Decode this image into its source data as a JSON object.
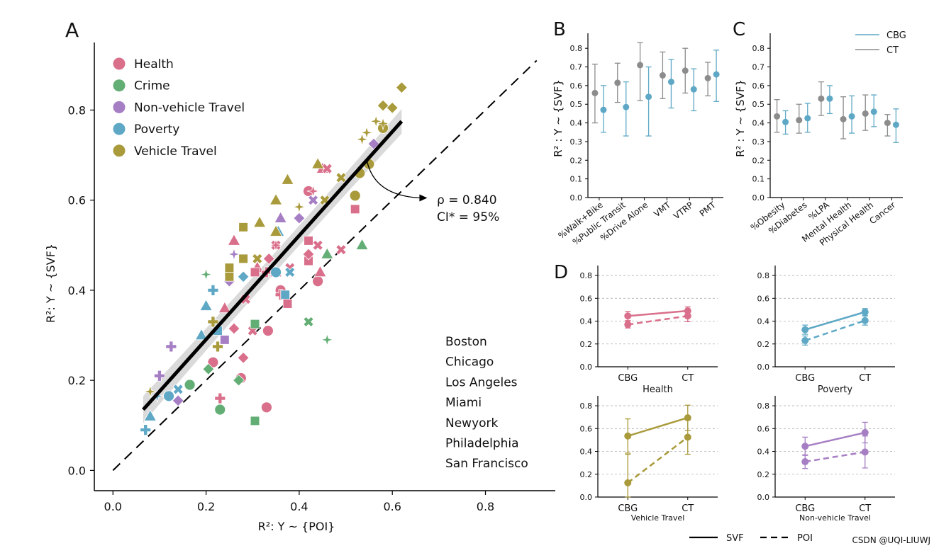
{
  "colors": {
    "Health": "#d96f8a",
    "Crime": "#63ae74",
    "Non-vehicle Travel": "#a67ec4",
    "Poverty": "#5ea8c6",
    "Vehicle Travel": "#a99a3b",
    "CBG": "#5ea8c6",
    "CT": "#8c8c8c",
    "fit": "#000000",
    "band": "#d3d3d3"
  },
  "watermark": "CSDN @UQI-LIUWJ",
  "chart_data": [
    {
      "panel": "A",
      "type": "scatter",
      "xlabel": "R²: Y ~ {POI}",
      "ylabel": "R²: Y ~ {SVF}",
      "xlim": [
        -0.04,
        0.95
      ],
      "ylim": [
        -0.045,
        0.95
      ],
      "xticks": [
        "0.0",
        "0.2",
        "0.4",
        "0.6",
        "0.8"
      ],
      "yticks": [
        "0.0",
        "0.2",
        "0.4",
        "0.6",
        "0.8"
      ],
      "legend_colors": [
        "Health",
        "Crime",
        "Non-vehicle Travel",
        "Poverty",
        "Vehicle Travel"
      ],
      "legend_cities": [
        {
          "label": "Boston",
          "marker": "circle"
        },
        {
          "label": "Chicago",
          "marker": "x"
        },
        {
          "label": "Los Angeles",
          "marker": "square"
        },
        {
          "label": "Miami",
          "marker": "plus"
        },
        {
          "label": "Newyork",
          "marker": "diamond"
        },
        {
          "label": "Philadelphia",
          "marker": "star"
        },
        {
          "label": "San Francisco",
          "marker": "triangle"
        }
      ],
      "annotation": {
        "rho": "ρ = 0.840",
        "ci": "CI* = 95%"
      },
      "fit_line": {
        "x": [
          0.065,
          0.62
        ],
        "y": [
          0.135,
          0.775
        ]
      },
      "identity_line": {
        "x": [
          0.0,
          0.91
        ],
        "y": [
          0.0,
          0.91
        ]
      },
      "points": [
        {
          "x": 0.333,
          "y": 0.31,
          "cat": "Health",
          "m": "circle"
        },
        {
          "x": 0.33,
          "y": 0.14,
          "cat": "Health",
          "m": "circle"
        },
        {
          "x": 0.275,
          "y": 0.205,
          "cat": "Health",
          "m": "circle"
        },
        {
          "x": 0.215,
          "y": 0.24,
          "cat": "Health",
          "m": "circle"
        },
        {
          "x": 0.44,
          "y": 0.42,
          "cat": "Health",
          "m": "circle"
        },
        {
          "x": 0.42,
          "y": 0.62,
          "cat": "Health",
          "m": "circle"
        },
        {
          "x": 0.36,
          "y": 0.4,
          "cat": "Health",
          "m": "circle"
        },
        {
          "x": 0.35,
          "y": 0.44,
          "cat": "Health",
          "m": "triangle"
        },
        {
          "x": 0.26,
          "y": 0.51,
          "cat": "Health",
          "m": "triangle"
        },
        {
          "x": 0.31,
          "y": 0.45,
          "cat": "Health",
          "m": "triangle"
        },
        {
          "x": 0.45,
          "y": 0.67,
          "cat": "Health",
          "m": "triangle"
        },
        {
          "x": 0.24,
          "y": 0.36,
          "cat": "Health",
          "m": "triangle"
        },
        {
          "x": 0.445,
          "y": 0.44,
          "cat": "Health",
          "m": "triangle"
        },
        {
          "x": 0.285,
          "y": 0.38,
          "cat": "Health",
          "m": "x"
        },
        {
          "x": 0.38,
          "y": 0.45,
          "cat": "Health",
          "m": "x"
        },
        {
          "x": 0.49,
          "y": 0.49,
          "cat": "Health",
          "m": "x"
        },
        {
          "x": 0.46,
          "y": 0.67,
          "cat": "Health",
          "m": "x"
        },
        {
          "x": 0.35,
          "y": 0.5,
          "cat": "Health",
          "m": "x"
        },
        {
          "x": 0.3,
          "y": 0.31,
          "cat": "Health",
          "m": "x"
        },
        {
          "x": 0.44,
          "y": 0.5,
          "cat": "Health",
          "m": "x"
        },
        {
          "x": 0.52,
          "y": 0.58,
          "cat": "Health",
          "m": "square"
        },
        {
          "x": 0.42,
          "y": 0.51,
          "cat": "Health",
          "m": "square"
        },
        {
          "x": 0.375,
          "y": 0.37,
          "cat": "Health",
          "m": "square"
        },
        {
          "x": 0.42,
          "y": 0.465,
          "cat": "Health",
          "m": "square"
        },
        {
          "x": 0.305,
          "y": 0.44,
          "cat": "Health",
          "m": "square"
        },
        {
          "x": 0.23,
          "y": 0.16,
          "cat": "Health",
          "m": "plus"
        },
        {
          "x": 0.36,
          "y": 0.39,
          "cat": "Health",
          "m": "plus"
        },
        {
          "x": 0.33,
          "y": 0.44,
          "cat": "Health",
          "m": "plus"
        },
        {
          "x": 0.28,
          "y": 0.25,
          "cat": "Health",
          "m": "diamond"
        },
        {
          "x": 0.42,
          "y": 0.48,
          "cat": "Health",
          "m": "diamond"
        },
        {
          "x": 0.335,
          "y": 0.47,
          "cat": "Health",
          "m": "diamond"
        },
        {
          "x": 0.26,
          "y": 0.315,
          "cat": "Health",
          "m": "diamond"
        },
        {
          "x": 0.43,
          "y": 0.62,
          "cat": "Health",
          "m": "star"
        },
        {
          "x": 0.35,
          "y": 0.5,
          "cat": "Health",
          "m": "star"
        },
        {
          "x": 0.23,
          "y": 0.135,
          "cat": "Crime",
          "m": "circle"
        },
        {
          "x": 0.165,
          "y": 0.19,
          "cat": "Crime",
          "m": "circle"
        },
        {
          "x": 0.305,
          "y": 0.11,
          "cat": "Crime",
          "m": "square"
        },
        {
          "x": 0.305,
          "y": 0.325,
          "cat": "Crime",
          "m": "square"
        },
        {
          "x": 0.27,
          "y": 0.2,
          "cat": "Crime",
          "m": "diamond"
        },
        {
          "x": 0.205,
          "y": 0.225,
          "cat": "Crime",
          "m": "diamond"
        },
        {
          "x": 0.46,
          "y": 0.29,
          "cat": "Crime",
          "m": "star"
        },
        {
          "x": 0.2,
          "y": 0.435,
          "cat": "Crime",
          "m": "star"
        },
        {
          "x": 0.42,
          "y": 0.33,
          "cat": "Crime",
          "m": "x"
        },
        {
          "x": 0.535,
          "y": 0.5,
          "cat": "Crime",
          "m": "triangle"
        },
        {
          "x": 0.46,
          "y": 0.48,
          "cat": "Crime",
          "m": "triangle"
        },
        {
          "x": 0.56,
          "y": 0.725,
          "cat": "Non-vehicle Travel",
          "m": "diamond"
        },
        {
          "x": 0.4,
          "y": 0.56,
          "cat": "Non-vehicle Travel",
          "m": "diamond"
        },
        {
          "x": 0.25,
          "y": 0.42,
          "cat": "Non-vehicle Travel",
          "m": "diamond"
        },
        {
          "x": 0.14,
          "y": 0.155,
          "cat": "Non-vehicle Travel",
          "m": "diamond"
        },
        {
          "x": 0.125,
          "y": 0.275,
          "cat": "Non-vehicle Travel",
          "m": "plus"
        },
        {
          "x": 0.1,
          "y": 0.21,
          "cat": "Non-vehicle Travel",
          "m": "plus"
        },
        {
          "x": 0.26,
          "y": 0.48,
          "cat": "Non-vehicle Travel",
          "m": "star"
        },
        {
          "x": 0.36,
          "y": 0.56,
          "cat": "Non-vehicle Travel",
          "m": "triangle"
        },
        {
          "x": 0.24,
          "y": 0.29,
          "cat": "Non-vehicle Travel",
          "m": "square"
        },
        {
          "x": 0.43,
          "y": 0.6,
          "cat": "Non-vehicle Travel",
          "m": "x"
        },
        {
          "x": 0.12,
          "y": 0.165,
          "cat": "Poverty",
          "m": "circle"
        },
        {
          "x": 0.35,
          "y": 0.44,
          "cat": "Poverty",
          "m": "circle"
        },
        {
          "x": 0.07,
          "y": 0.09,
          "cat": "Poverty",
          "m": "plus"
        },
        {
          "x": 0.215,
          "y": 0.4,
          "cat": "Poverty",
          "m": "plus"
        },
        {
          "x": 0.08,
          "y": 0.12,
          "cat": "Poverty",
          "m": "triangle"
        },
        {
          "x": 0.2,
          "y": 0.365,
          "cat": "Poverty",
          "m": "triangle"
        },
        {
          "x": 0.19,
          "y": 0.3,
          "cat": "Poverty",
          "m": "triangle"
        },
        {
          "x": 0.355,
          "y": 0.53,
          "cat": "Poverty",
          "m": "triangle"
        },
        {
          "x": 0.14,
          "y": 0.18,
          "cat": "Poverty",
          "m": "x"
        },
        {
          "x": 0.38,
          "y": 0.44,
          "cat": "Poverty",
          "m": "x"
        },
        {
          "x": 0.37,
          "y": 0.39,
          "cat": "Poverty",
          "m": "square"
        },
        {
          "x": 0.225,
          "y": 0.31,
          "cat": "Poverty",
          "m": "square"
        },
        {
          "x": 0.095,
          "y": 0.165,
          "cat": "Poverty",
          "m": "star"
        },
        {
          "x": 0.28,
          "y": 0.43,
          "cat": "Poverty",
          "m": "diamond"
        },
        {
          "x": 0.58,
          "y": 0.76,
          "cat": "Vehicle Travel",
          "m": "circle"
        },
        {
          "x": 0.55,
          "y": 0.68,
          "cat": "Vehicle Travel",
          "m": "circle"
        },
        {
          "x": 0.52,
          "y": 0.61,
          "cat": "Vehicle Travel",
          "m": "circle"
        },
        {
          "x": 0.53,
          "y": 0.66,
          "cat": "Vehicle Travel",
          "m": "circle"
        },
        {
          "x": 0.62,
          "y": 0.85,
          "cat": "Vehicle Travel",
          "m": "diamond"
        },
        {
          "x": 0.6,
          "y": 0.805,
          "cat": "Vehicle Travel",
          "m": "diamond"
        },
        {
          "x": 0.58,
          "y": 0.81,
          "cat": "Vehicle Travel",
          "m": "diamond"
        },
        {
          "x": 0.565,
          "y": 0.775,
          "cat": "Vehicle Travel",
          "m": "star"
        },
        {
          "x": 0.58,
          "y": 0.77,
          "cat": "Vehicle Travel",
          "m": "star"
        },
        {
          "x": 0.545,
          "y": 0.75,
          "cat": "Vehicle Travel",
          "m": "star"
        },
        {
          "x": 0.535,
          "y": 0.735,
          "cat": "Vehicle Travel",
          "m": "star"
        },
        {
          "x": 0.44,
          "y": 0.68,
          "cat": "Vehicle Travel",
          "m": "triangle"
        },
        {
          "x": 0.375,
          "y": 0.645,
          "cat": "Vehicle Travel",
          "m": "triangle"
        },
        {
          "x": 0.35,
          "y": 0.6,
          "cat": "Vehicle Travel",
          "m": "triangle"
        },
        {
          "x": 0.315,
          "y": 0.55,
          "cat": "Vehicle Travel",
          "m": "triangle"
        },
        {
          "x": 0.35,
          "y": 0.53,
          "cat": "Vehicle Travel",
          "m": "triangle"
        },
        {
          "x": 0.49,
          "y": 0.65,
          "cat": "Vehicle Travel",
          "m": "x"
        },
        {
          "x": 0.455,
          "y": 0.6,
          "cat": "Vehicle Travel",
          "m": "x"
        },
        {
          "x": 0.28,
          "y": 0.54,
          "cat": "Vehicle Travel",
          "m": "square"
        },
        {
          "x": 0.28,
          "y": 0.47,
          "cat": "Vehicle Travel",
          "m": "square"
        },
        {
          "x": 0.25,
          "y": 0.45,
          "cat": "Vehicle Travel",
          "m": "square"
        },
        {
          "x": 0.25,
          "y": 0.43,
          "cat": "Vehicle Travel",
          "m": "square"
        },
        {
          "x": 0.215,
          "y": 0.33,
          "cat": "Vehicle Travel",
          "m": "plus"
        },
        {
          "x": 0.225,
          "y": 0.275,
          "cat": "Vehicle Travel",
          "m": "plus"
        },
        {
          "x": 0.08,
          "y": 0.175,
          "cat": "Vehicle Travel",
          "m": "star"
        },
        {
          "x": 0.4,
          "y": 0.585,
          "cat": "Vehicle Travel",
          "m": "star"
        },
        {
          "x": 0.31,
          "y": 0.47,
          "cat": "Vehicle Travel",
          "m": "x"
        }
      ]
    },
    {
      "panel": "B",
      "type": "errorbar",
      "ylabel": "R² : Y ~ {SVF}",
      "ylim": [
        0.0,
        0.85
      ],
      "yticks": [
        "0.0",
        "0.1",
        "0.2",
        "0.3",
        "0.4",
        "0.5",
        "0.6",
        "0.7",
        "0.8"
      ],
      "categories": [
        "%Walk+Bike",
        "%Public Transit",
        "%Drive Alone",
        "VMT",
        "VTRP",
        "PMT"
      ],
      "series": [
        {
          "name": "CT",
          "mean": [
            0.56,
            0.615,
            0.71,
            0.655,
            0.68,
            0.64
          ],
          "low": [
            0.4,
            0.51,
            0.52,
            0.53,
            0.56,
            0.545
          ],
          "high": [
            0.715,
            0.72,
            0.83,
            0.78,
            0.8,
            0.725
          ]
        },
        {
          "name": "CBG",
          "mean": [
            0.47,
            0.485,
            0.54,
            0.62,
            0.58,
            0.66
          ],
          "low": [
            0.35,
            0.33,
            0.33,
            0.48,
            0.465,
            0.515
          ],
          "high": [
            0.6,
            0.62,
            0.7,
            0.74,
            0.69,
            0.79
          ]
        }
      ]
    },
    {
      "panel": "C",
      "type": "errorbar",
      "ylabel": "R² : Y ~ {SVF}",
      "ylim": [
        0.0,
        0.85
      ],
      "yticks": [
        "0.0",
        "0.1",
        "0.2",
        "0.3",
        "0.4",
        "0.5",
        "0.6",
        "0.7",
        "0.8"
      ],
      "categories": [
        "%Obesity",
        "%Diabetes",
        "%LPA",
        "Mental Health",
        "Physical Health",
        "Cancer"
      ],
      "legend": [
        "CBG",
        "CT"
      ],
      "series": [
        {
          "name": "CT",
          "mean": [
            0.435,
            0.415,
            0.53,
            0.42,
            0.45,
            0.4
          ],
          "low": [
            0.35,
            0.345,
            0.44,
            0.315,
            0.36,
            0.33
          ],
          "high": [
            0.525,
            0.5,
            0.62,
            0.54,
            0.55,
            0.445
          ]
        },
        {
          "name": "CBG",
          "mean": [
            0.405,
            0.425,
            0.53,
            0.435,
            0.46,
            0.39
          ],
          "low": [
            0.34,
            0.35,
            0.45,
            0.345,
            0.38,
            0.295
          ],
          "high": [
            0.465,
            0.505,
            0.6,
            0.545,
            0.55,
            0.475
          ]
        }
      ]
    },
    {
      "panel": "D",
      "type": "line",
      "ylim": [
        0.0,
        0.85
      ],
      "yticks": [
        "0.0",
        "0.2",
        "0.4",
        "0.6",
        "0.8"
      ],
      "categories": [
        "CBG",
        "CT"
      ],
      "legend": [
        {
          "label": "SVF",
          "style": "solid"
        },
        {
          "label": "POI",
          "style": "dashed"
        }
      ],
      "subplots": [
        {
          "title": "Health",
          "color_key": "Health",
          "title_size": "large",
          "svf": {
            "mean": [
              0.445,
              0.49
            ],
            "err": [
              0.04,
              0.035
            ]
          },
          "poi": {
            "mean": [
              0.37,
              0.445
            ],
            "err": [
              0.03,
              0.05
            ]
          }
        },
        {
          "title": "Poverty",
          "color_key": "Poverty",
          "title_size": "large",
          "svf": {
            "mean": [
              0.325,
              0.48
            ],
            "err": [
              0.04,
              0.03
            ]
          },
          "poi": {
            "mean": [
              0.23,
              0.405
            ],
            "err": [
              0.04,
              0.04
            ]
          }
        },
        {
          "title": "Vehicle Travel",
          "color_key": "Vehicle Travel",
          "title_size": "small",
          "svf": {
            "mean": [
              0.535,
              0.695
            ],
            "err": [
              0.15,
              0.11
            ]
          },
          "poi": {
            "mean": [
              0.125,
              0.525
            ],
            "err": [
              0.25,
              0.15
            ]
          }
        },
        {
          "title": "Non-vehicle Travel",
          "color_key": "Non-vehicle Travel",
          "title_size": "small",
          "svf": {
            "mean": [
              0.445,
              0.565
            ],
            "err": [
              0.08,
              0.09
            ]
          },
          "poi": {
            "mean": [
              0.31,
              0.395
            ],
            "err": [
              0.06,
              0.14
            ]
          }
        }
      ]
    }
  ]
}
